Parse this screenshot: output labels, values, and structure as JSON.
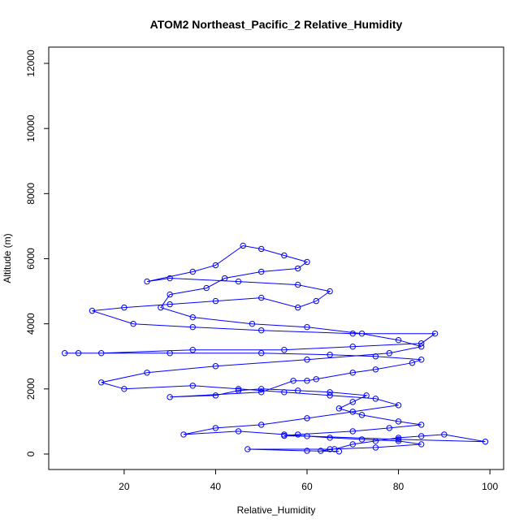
{
  "chart_data": {
    "type": "line",
    "title": "ATOM2 Northeast_Pacific_2 Relative_Humidity",
    "x_label": "Relative_Humidity",
    "y_label": "Altitude (m)",
    "color": "#0000ff",
    "markers": true,
    "xlim": [
      3.5,
      103
    ],
    "ylim": [
      -475,
      12500
    ],
    "xticks": [
      20,
      40,
      60,
      80,
      100
    ],
    "yticks": [
      0,
      2000,
      4000,
      6000,
      8000,
      10000,
      12000
    ],
    "x": [
      63,
      66,
      70,
      75,
      80,
      85,
      90,
      99,
      80,
      60,
      55,
      58,
      70,
      78,
      85,
      80,
      72,
      67,
      70,
      73,
      65,
      58,
      50,
      45,
      40,
      30,
      50,
      57,
      60,
      62,
      70,
      75,
      83,
      85,
      75,
      65,
      50,
      30,
      10,
      7,
      15,
      35,
      55,
      70,
      85,
      88,
      70,
      50,
      35,
      22,
      13,
      20,
      30,
      40,
      50,
      58,
      62,
      65,
      58,
      45,
      30,
      25,
      35,
      40,
      46,
      50,
      55,
      60,
      58,
      50,
      42,
      38,
      30,
      28,
      35,
      48,
      60,
      72,
      80,
      85,
      78,
      60,
      40,
      25,
      15,
      20,
      35,
      45,
      55,
      65,
      75,
      80,
      70,
      60,
      50,
      40,
      33,
      45,
      55,
      65,
      72,
      80,
      85,
      75,
      65,
      47,
      60,
      67
    ],
    "values": [
      100,
      150,
      300,
      400,
      500,
      550,
      600,
      380,
      450,
      550,
      560,
      600,
      700,
      800,
      900,
      1000,
      1200,
      1400,
      1600,
      1800,
      1900,
      1950,
      2000,
      1950,
      1800,
      1750,
      1900,
      2250,
      2250,
      2300,
      2500,
      2600,
      2800,
      2900,
      3000,
      3050,
      3100,
      3100,
      3100,
      3100,
      3100,
      3200,
      3200,
      3300,
      3400,
      3700,
      3700,
      3800,
      3900,
      4000,
      4400,
      4500,
      4600,
      4700,
      4800,
      4500,
      4700,
      5000,
      5200,
      5300,
      5400,
      5300,
      5600,
      5800,
      6400,
      6300,
      6100,
      5900,
      5700,
      5600,
      5400,
      5100,
      4900,
      4500,
      4200,
      4000,
      3900,
      3700,
      3500,
      3300,
      3100,
      2900,
      2700,
      2500,
      2200,
      2000,
      2100,
      2000,
      1900,
      1800,
      1700,
      1500,
      1300,
      1100,
      900,
      800,
      600,
      700,
      600,
      500,
      450,
      400,
      300,
      200,
      150,
      150,
      100,
      80
    ]
  }
}
